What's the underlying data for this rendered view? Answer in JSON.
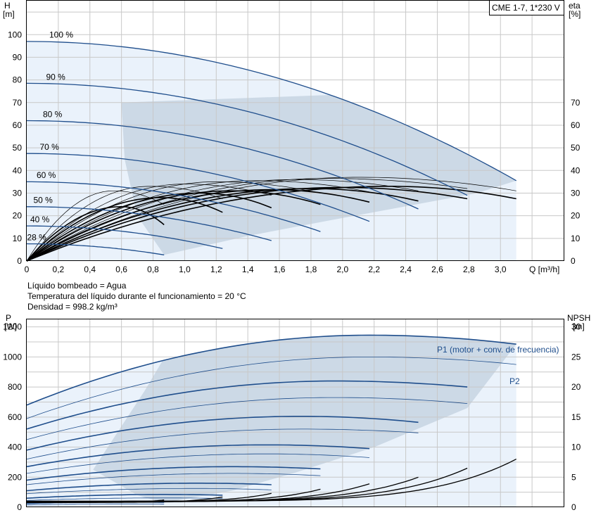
{
  "model_label": "CME 1-7, 1*230 V",
  "notes": [
    "Líquido bombeado = Agua",
    "Temperatura del líquido durante el funcionamiento = 20 °C",
    "Densidad = 998.2 kg/m³"
  ],
  "colors": {
    "curve": "#1f4e8c",
    "area_light": "#eaf2fb",
    "area_dark": "#ccd9e6",
    "grid": "#c8c8c8",
    "efficiency": "#000000"
  },
  "chart_data": [
    {
      "type": "line",
      "x_axis": {
        "unit_label": "Q [m³/h]",
        "range": [
          0,
          3.4
        ],
        "ticks": [
          "0",
          "0,2",
          "0,4",
          "0,6",
          "0,8",
          "1,0",
          "1,2",
          "1,4",
          "1,6",
          "1,8",
          "2,0",
          "2,2",
          "2,4",
          "2,6",
          "2,8",
          "3,0"
        ]
      },
      "y_left": {
        "label": "H",
        "unit": "[m]",
        "range": [
          0,
          115
        ],
        "ticks": [
          "0",
          "10",
          "20",
          "30",
          "40",
          "50",
          "60",
          "70",
          "80",
          "90",
          "100"
        ]
      },
      "y_right": {
        "label": "eta",
        "unit": "[%]",
        "range": [
          0,
          115
        ],
        "ticks": [
          "0",
          "10",
          "20",
          "30",
          "40",
          "50",
          "60",
          "70"
        ]
      },
      "head_curves": [
        {
          "label": "100 %",
          "h0": 97,
          "qmax": 3.1,
          "hend": 35.5
        },
        {
          "label": "90 %",
          "h0": 78.5,
          "qmax": 2.79,
          "hend": 29
        },
        {
          "label": "80 %",
          "h0": 62,
          "qmax": 2.48,
          "hend": 23
        },
        {
          "label": "70 %",
          "h0": 47.5,
          "qmax": 2.17,
          "hend": 17.5
        },
        {
          "label": "60 %",
          "h0": 35,
          "qmax": 1.86,
          "hend": 13
        },
        {
          "label": "50 %",
          "h0": 24,
          "qmax": 1.55,
          "hend": 9
        },
        {
          "label": "40 %",
          "h0": 15.5,
          "qmax": 1.24,
          "hend": 5.5
        },
        {
          "label": "28 %",
          "h0": 7.6,
          "qmax": 0.87,
          "hend": 2.7
        }
      ],
      "efficiency_curves": [
        {
          "qmax": 3.1,
          "peak_q": 2.3,
          "peak": 33,
          "end": 27.5
        },
        {
          "qmax": 3.1,
          "peak_q": 2.1,
          "peak": 37,
          "end": 31
        },
        {
          "qmax": 2.79,
          "peak_q": 2.0,
          "peak": 32.5,
          "end": 27.5
        },
        {
          "qmax": 2.79,
          "peak_q": 1.9,
          "peak": 36.5,
          "end": 32
        },
        {
          "qmax": 2.48,
          "peak_q": 1.8,
          "peak": 32,
          "end": 26.5
        },
        {
          "qmax": 2.48,
          "peak_q": 1.7,
          "peak": 36,
          "end": 31
        },
        {
          "qmax": 2.17,
          "peak_q": 1.55,
          "peak": 31.5,
          "end": 26
        },
        {
          "qmax": 2.17,
          "peak_q": 1.45,
          "peak": 35.5,
          "end": 30.5
        },
        {
          "qmax": 1.86,
          "peak_q": 1.3,
          "peak": 31,
          "end": 25
        },
        {
          "qmax": 1.86,
          "peak_q": 1.2,
          "peak": 35,
          "end": 30
        },
        {
          "qmax": 1.55,
          "peak_q": 1.1,
          "peak": 30,
          "end": 23.5
        },
        {
          "qmax": 1.55,
          "peak_q": 1.0,
          "peak": 34,
          "end": 29
        },
        {
          "qmax": 1.24,
          "peak_q": 0.85,
          "peak": 28,
          "end": 21.5
        },
        {
          "qmax": 1.24,
          "peak_q": 0.78,
          "peak": 33,
          "end": 27.5
        },
        {
          "qmax": 0.87,
          "peak_q": 0.6,
          "peak": 24,
          "end": 16
        },
        {
          "qmax": 0.87,
          "peak_q": 0.55,
          "peak": 31,
          "end": 25
        }
      ]
    },
    {
      "type": "line",
      "x_axis": {
        "range": [
          0,
          3.4
        ]
      },
      "y_left": {
        "label": "P",
        "unit": "[W]",
        "range": [
          0,
          1250
        ],
        "ticks": [
          "0",
          "200",
          "400",
          "600",
          "800",
          "1000",
          "1200"
        ]
      },
      "y_right": {
        "label": "NPSH",
        "unit": "[m]",
        "range": [
          0,
          31.25
        ],
        "ticks": [
          "0",
          "5",
          "10",
          "15",
          "20",
          "25",
          "30"
        ]
      },
      "power_curves": [
        {
          "series": "P1 (motor + conv. de frecuencia)",
          "p0": 680,
          "pmax": 1145,
          "qmax": 3.1,
          "pend": 1085
        },
        {
          "series": "P2",
          "p0": 590,
          "pmax": 1000,
          "qmax": 3.1,
          "pend": 950
        },
        {
          "p0": 520,
          "pmax": 840,
          "qmax": 2.79,
          "pend": 800
        },
        {
          "p0": 450,
          "pmax": 730,
          "qmax": 2.79,
          "pend": 690
        },
        {
          "p0": 380,
          "pmax": 605,
          "qmax": 2.48,
          "pend": 565
        },
        {
          "p0": 320,
          "pmax": 520,
          "qmax": 2.48,
          "pend": 495
        },
        {
          "p0": 270,
          "pmax": 415,
          "qmax": 2.17,
          "pend": 390
        },
        {
          "p0": 225,
          "pmax": 355,
          "qmax": 2.17,
          "pend": 330
        },
        {
          "p0": 180,
          "pmax": 270,
          "qmax": 1.86,
          "pend": 255
        },
        {
          "p0": 150,
          "pmax": 225,
          "qmax": 1.86,
          "pend": 210
        },
        {
          "p0": 110,
          "pmax": 160,
          "qmax": 1.55,
          "pend": 150
        },
        {
          "p0": 90,
          "pmax": 125,
          "qmax": 1.55,
          "pend": 115
        },
        {
          "p0": 60,
          "pmax": 85,
          "qmax": 1.24,
          "pend": 80
        },
        {
          "p0": 45,
          "pmax": 62,
          "qmax": 1.24,
          "pend": 58
        },
        {
          "p0": 25,
          "pmax": 35,
          "qmax": 0.87,
          "pend": 33
        },
        {
          "p0": 15,
          "pmax": 22,
          "qmax": 0.87,
          "pend": 20
        }
      ],
      "power_labels": [
        "P1 (motor + conv. de frecuencia)",
        "P2"
      ],
      "npsh_curves": [
        {
          "qmax": 3.1,
          "start": 1.0,
          "end": 8.0
        },
        {
          "qmax": 2.79,
          "start": 1.0,
          "end": 6.5
        },
        {
          "qmax": 2.48,
          "start": 1.0,
          "end": 5.0
        },
        {
          "qmax": 2.17,
          "start": 0.9,
          "end": 3.9
        },
        {
          "qmax": 1.86,
          "start": 0.9,
          "end": 3.0
        },
        {
          "qmax": 1.55,
          "start": 0.9,
          "end": 2.3
        },
        {
          "qmax": 1.24,
          "start": 0.8,
          "end": 1.7
        },
        {
          "qmax": 0.87,
          "start": 0.8,
          "end": 1.2
        }
      ]
    }
  ]
}
